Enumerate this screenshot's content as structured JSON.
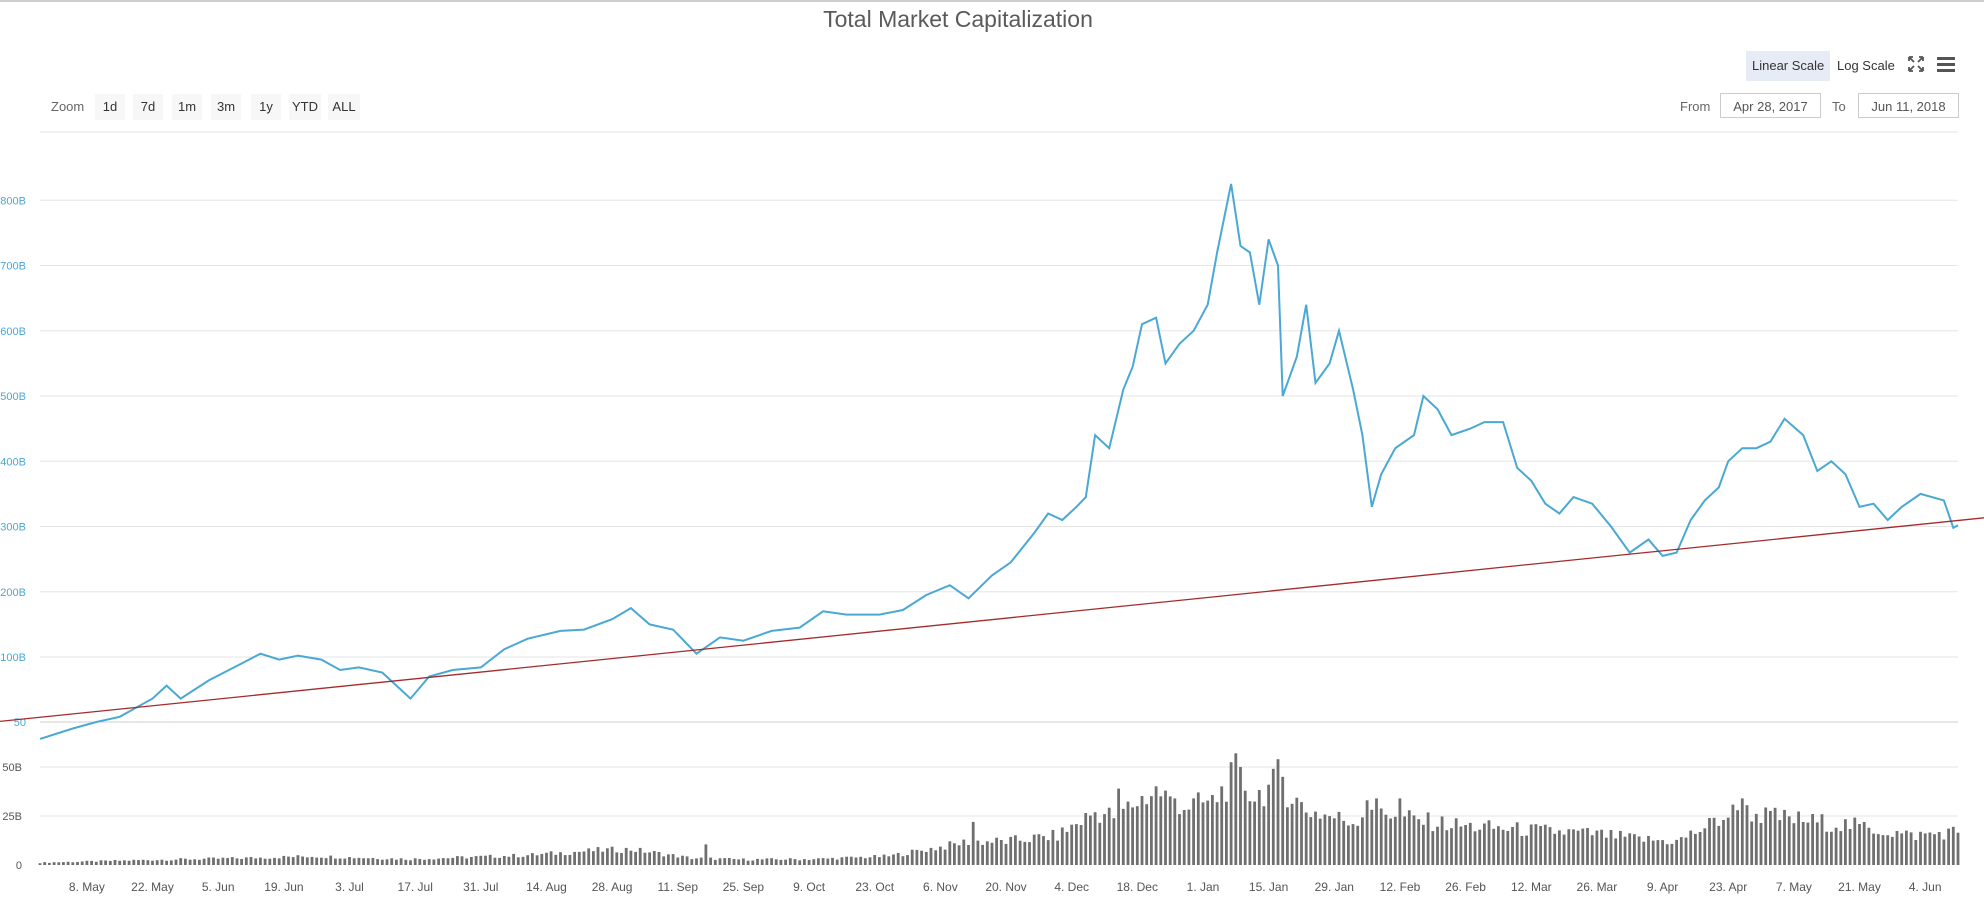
{
  "title": "Total Market Capitalization",
  "scale_buttons": [
    {
      "label": "Linear Scale",
      "active": true
    },
    {
      "label": "Log Scale",
      "active": false
    }
  ],
  "icons": {
    "fullscreen": "fullscreen-icon",
    "menu": "hamburger-menu-icon"
  },
  "zoom": {
    "label": "Zoom",
    "buttons": [
      "1d",
      "7d",
      "1m",
      "3m",
      "1y",
      "YTD",
      "ALL"
    ]
  },
  "range": {
    "from_label": "From",
    "from_value": "Apr 28, 2017",
    "to_label": "To",
    "to_value": "Jun 11, 2018"
  },
  "colors": {
    "line": "#4aa8d4",
    "trend": "#a52a2a",
    "volume": "#6f6f6f",
    "axis_text": "#4aa8d4"
  },
  "chart_data": [
    {
      "type": "line",
      "title": "Total Market Capitalization",
      "y_unit": "B",
      "ylim": [
        50,
        850
      ],
      "y_ticks": [
        {
          "value": 50,
          "label": "50"
        },
        {
          "value": 100,
          "label": "100B"
        },
        {
          "value": 200,
          "label": "200B"
        },
        {
          "value": 300,
          "label": "300B"
        },
        {
          "value": 400,
          "label": "400B"
        },
        {
          "value": 500,
          "label": "500B"
        },
        {
          "value": 600,
          "label": "600B"
        },
        {
          "value": 700,
          "label": "700B"
        },
        {
          "value": 800,
          "label": "800B"
        }
      ],
      "x_range": [
        "2017-04-28",
        "2018-06-11"
      ],
      "x_ticks": [
        "8. May",
        "22. May",
        "5. Jun",
        "19. Jun",
        "3. Jul",
        "17. Jul",
        "31. Jul",
        "14. Aug",
        "28. Aug",
        "11. Sep",
        "25. Sep",
        "9. Oct",
        "23. Oct",
        "6. Nov",
        "20. Nov",
        "4. Dec",
        "18. Dec",
        "1. Jan",
        "15. Jan",
        "29. Jan",
        "12. Feb",
        "26. Feb",
        "12. Mar",
        "26. Mar",
        "9. Apr",
        "23. Apr",
        "7. May",
        "21. May",
        "4. Jun"
      ],
      "grid": true,
      "series": [
        {
          "points": [
            [
              "2017-04-28",
              37
            ],
            [
              "2017-05-05",
              45
            ],
            [
              "2017-05-10",
              50
            ],
            [
              "2017-05-15",
              54
            ],
            [
              "2017-05-22",
              68
            ],
            [
              "2017-05-25",
              78
            ],
            [
              "2017-05-28",
              68
            ],
            [
              "2017-06-03",
              82
            ],
            [
              "2017-06-10",
              95
            ],
            [
              "2017-06-14",
              105
            ],
            [
              "2017-06-18",
              98
            ],
            [
              "2017-06-22",
              102
            ],
            [
              "2017-06-27",
              98
            ],
            [
              "2017-07-01",
              90
            ],
            [
              "2017-07-05",
              92
            ],
            [
              "2017-07-10",
              88
            ],
            [
              "2017-07-16",
              68
            ],
            [
              "2017-07-20",
              85
            ],
            [
              "2017-07-25",
              90
            ],
            [
              "2017-07-31",
              92
            ],
            [
              "2017-08-05",
              112
            ],
            [
              "2017-08-10",
              128
            ],
            [
              "2017-08-17",
              140
            ],
            [
              "2017-08-22",
              142
            ],
            [
              "2017-08-28",
              158
            ],
            [
              "2017-09-01",
              175
            ],
            [
              "2017-09-05",
              150
            ],
            [
              "2017-09-10",
              142
            ],
            [
              "2017-09-15",
              105
            ],
            [
              "2017-09-20",
              130
            ],
            [
              "2017-09-25",
              125
            ],
            [
              "2017-10-01",
              140
            ],
            [
              "2017-10-07",
              145
            ],
            [
              "2017-10-12",
              170
            ],
            [
              "2017-10-17",
              165
            ],
            [
              "2017-10-24",
              165
            ],
            [
              "2017-10-29",
              172
            ],
            [
              "2017-11-03",
              195
            ],
            [
              "2017-11-08",
              210
            ],
            [
              "2017-11-12",
              190
            ],
            [
              "2017-11-17",
              225
            ],
            [
              "2017-11-21",
              245
            ],
            [
              "2017-11-26",
              290
            ],
            [
              "2017-11-29",
              320
            ],
            [
              "2017-12-02",
              310
            ],
            [
              "2017-12-05",
              330
            ],
            [
              "2017-12-07",
              345
            ],
            [
              "2017-12-09",
              440
            ],
            [
              "2017-12-12",
              420
            ],
            [
              "2017-12-15",
              510
            ],
            [
              "2017-12-17",
              545
            ],
            [
              "2017-12-19",
              610
            ],
            [
              "2017-12-22",
              620
            ],
            [
              "2017-12-24",
              550
            ],
            [
              "2017-12-27",
              580
            ],
            [
              "2017-12-30",
              600
            ],
            [
              "2018-01-02",
              640
            ],
            [
              "2018-01-04",
              720
            ],
            [
              "2018-01-07",
              825
            ],
            [
              "2018-01-09",
              730
            ],
            [
              "2018-01-11",
              720
            ],
            [
              "2018-01-13",
              640
            ],
            [
              "2018-01-15",
              740
            ],
            [
              "2018-01-17",
              700
            ],
            [
              "2018-01-18",
              500
            ],
            [
              "2018-01-21",
              560
            ],
            [
              "2018-01-23",
              640
            ],
            [
              "2018-01-25",
              520
            ],
            [
              "2018-01-28",
              550
            ],
            [
              "2018-01-30",
              600
            ],
            [
              "2018-02-02",
              510
            ],
            [
              "2018-02-04",
              440
            ],
            [
              "2018-02-06",
              330
            ],
            [
              "2018-02-08",
              380
            ],
            [
              "2018-02-11",
              420
            ],
            [
              "2018-02-15",
              440
            ],
            [
              "2018-02-17",
              500
            ],
            [
              "2018-02-20",
              480
            ],
            [
              "2018-02-23",
              440
            ],
            [
              "2018-02-27",
              450
            ],
            [
              "2018-03-02",
              460
            ],
            [
              "2018-03-06",
              460
            ],
            [
              "2018-03-09",
              390
            ],
            [
              "2018-03-12",
              370
            ],
            [
              "2018-03-15",
              335
            ],
            [
              "2018-03-18",
              320
            ],
            [
              "2018-03-21",
              345
            ],
            [
              "2018-03-25",
              335
            ],
            [
              "2018-03-29",
              300
            ],
            [
              "2018-04-02",
              260
            ],
            [
              "2018-04-06",
              280
            ],
            [
              "2018-04-09",
              255
            ],
            [
              "2018-04-12",
              260
            ],
            [
              "2018-04-15",
              310
            ],
            [
              "2018-04-18",
              340
            ],
            [
              "2018-04-21",
              360
            ],
            [
              "2018-04-23",
              400
            ],
            [
              "2018-04-26",
              420
            ],
            [
              "2018-04-29",
              420
            ],
            [
              "2018-05-02",
              430
            ],
            [
              "2018-05-05",
              465
            ],
            [
              "2018-05-09",
              440
            ],
            [
              "2018-05-12",
              385
            ],
            [
              "2018-05-15",
              400
            ],
            [
              "2018-05-18",
              380
            ],
            [
              "2018-05-21",
              330
            ],
            [
              "2018-05-24",
              335
            ],
            [
              "2018-05-27",
              310
            ],
            [
              "2018-05-30",
              330
            ],
            [
              "2018-06-03",
              350
            ],
            [
              "2018-06-08",
              340
            ],
            [
              "2018-06-10",
              298
            ],
            [
              "2018-06-11",
              302
            ]
          ]
        }
      ],
      "trendline": {
        "start": [
          "2017-04-28",
          52
        ],
        "end": [
          "2018-06-11",
          298
        ]
      }
    },
    {
      "type": "bar",
      "title": "",
      "ylim": [
        0,
        60
      ],
      "y_ticks": [
        {
          "value": 0,
          "label": "0"
        },
        {
          "value": 25,
          "label": "25B"
        },
        {
          "value": 50,
          "label": "50B"
        }
      ],
      "x_range": [
        "2017-04-28",
        "2018-06-11"
      ],
      "anchors": [
        [
          "2017-04-28",
          1.2
        ],
        [
          "2017-05-20",
          2.5
        ],
        [
          "2017-06-10",
          3.5
        ],
        [
          "2017-06-25",
          4.5
        ],
        [
          "2017-07-16",
          3
        ],
        [
          "2017-08-10",
          5
        ],
        [
          "2017-08-25",
          7.5
        ],
        [
          "2017-09-01",
          8
        ],
        [
          "2017-09-14",
          3.5
        ],
        [
          "2017-09-25",
          2.8
        ],
        [
          "2017-10-10",
          3
        ],
        [
          "2017-10-26",
          4.5
        ],
        [
          "2017-11-08",
          10
        ],
        [
          "2017-11-12",
          12
        ],
        [
          "2017-11-20",
          12
        ],
        [
          "2017-12-01",
          15
        ],
        [
          "2017-12-09",
          27
        ],
        [
          "2017-12-13",
          25
        ],
        [
          "2017-12-22",
          38
        ],
        [
          "2017-12-28",
          30
        ],
        [
          "2018-01-03",
          32
        ],
        [
          "2018-01-08",
          46
        ],
        [
          "2018-01-12",
          35
        ],
        [
          "2018-01-17",
          42
        ],
        [
          "2018-01-23",
          28
        ],
        [
          "2018-02-02",
          22
        ],
        [
          "2018-02-06",
          30
        ],
        [
          "2018-02-15",
          23
        ],
        [
          "2018-02-25",
          20
        ],
        [
          "2018-03-10",
          18
        ],
        [
          "2018-03-25",
          16
        ],
        [
          "2018-04-05",
          13
        ],
        [
          "2018-04-12",
          12
        ],
        [
          "2018-04-17",
          18
        ],
        [
          "2018-04-25",
          28
        ],
        [
          "2018-05-01",
          25
        ],
        [
          "2018-05-12",
          22
        ],
        [
          "2018-05-20",
          20
        ],
        [
          "2018-06-01",
          15
        ],
        [
          "2018-06-11",
          17
        ]
      ],
      "spikes": [
        [
          "2017-09-17",
          10.5
        ],
        [
          "2017-11-13",
          22
        ],
        [
          "2017-12-14",
          39
        ],
        [
          "2017-12-25",
          35
        ],
        [
          "2017-12-26",
          34
        ],
        [
          "2018-01-08",
          57
        ],
        [
          "2018-01-09",
          50
        ],
        [
          "2018-01-17",
          54
        ],
        [
          "2018-01-18",
          45
        ],
        [
          "2018-02-05",
          33
        ],
        [
          "2018-02-12",
          34
        ],
        [
          "2018-04-26",
          34
        ]
      ]
    }
  ]
}
